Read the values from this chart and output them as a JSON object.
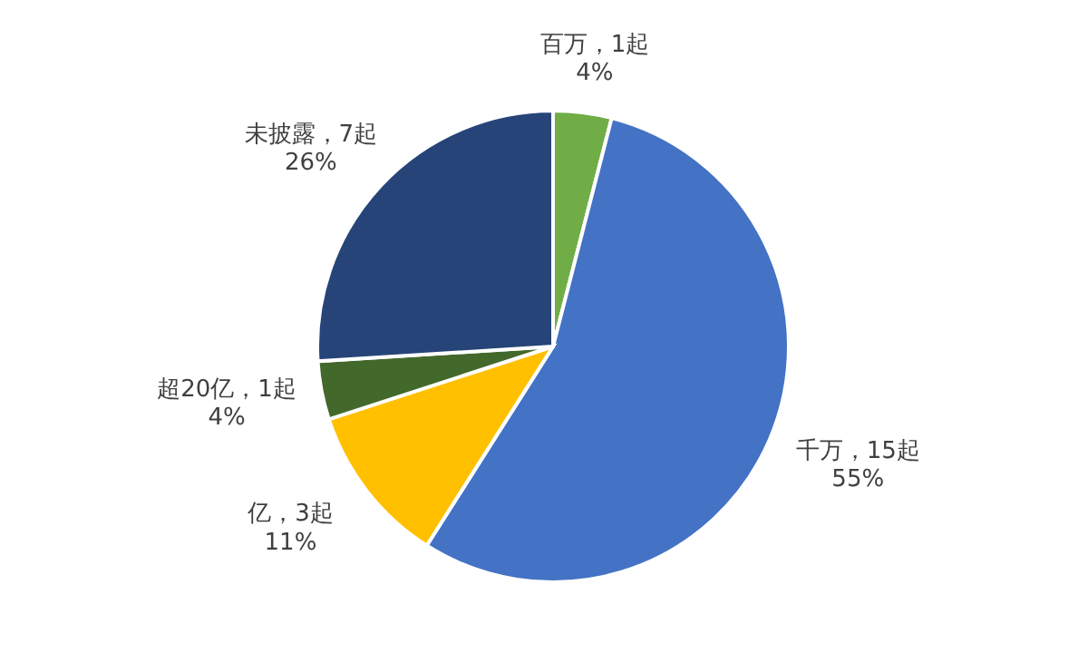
{
  "chart_data": {
    "type": "pie",
    "categories": [
      "百万，1起",
      "千万，15起",
      "亿，3起",
      "超20亿，1起",
      "未披露，7起"
    ],
    "values": [
      4,
      55,
      11,
      4,
      26
    ],
    "value_labels": [
      "4%",
      "55%",
      "11%",
      "4%",
      "26%"
    ],
    "colors": [
      "#70ad47",
      "#4472c4",
      "#ffc000",
      "#43682b",
      "#264478"
    ],
    "legend": false
  }
}
